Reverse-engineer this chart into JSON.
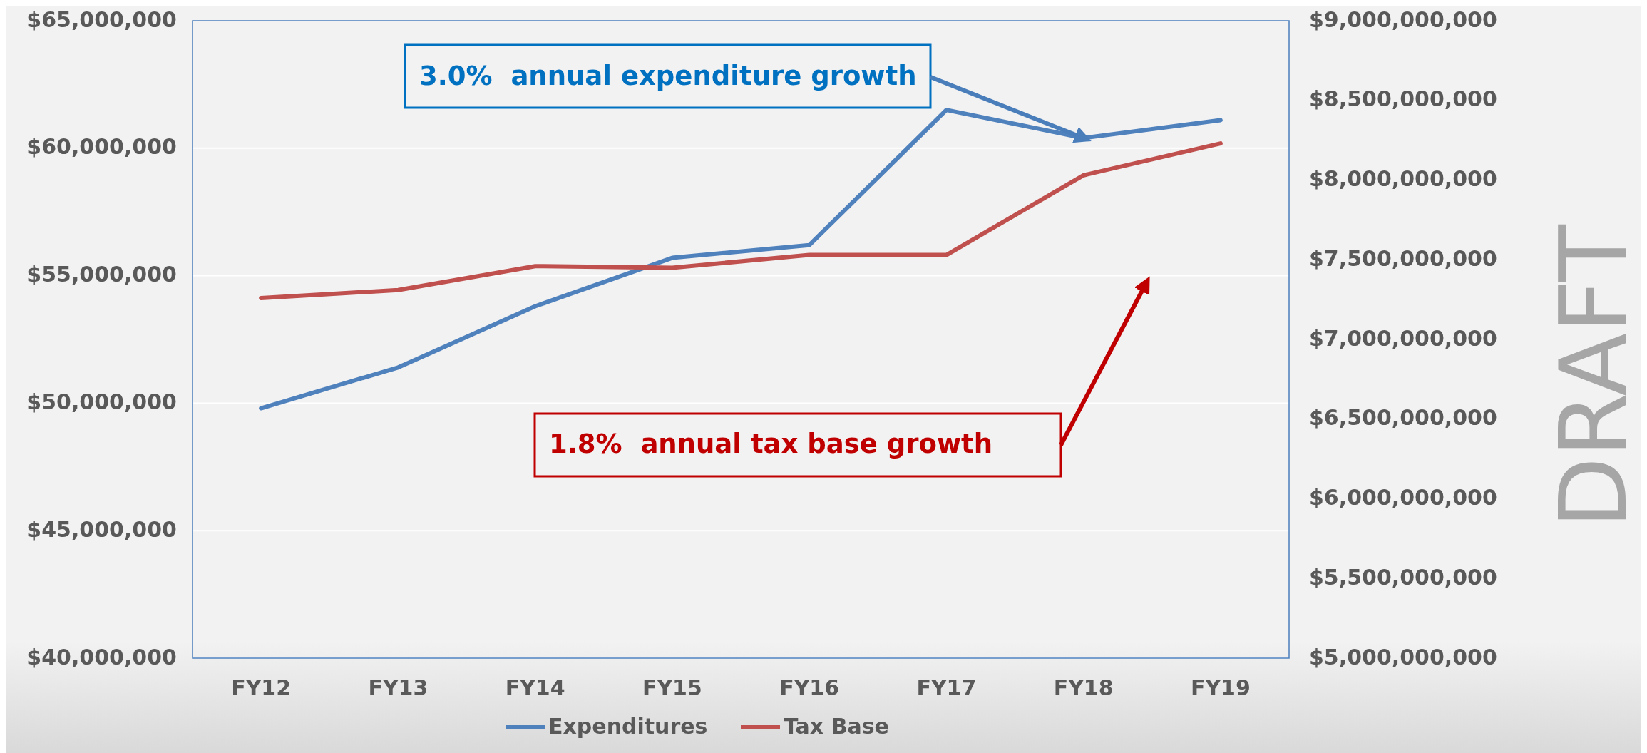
{
  "chart_data": {
    "type": "line",
    "categories": [
      "FY12",
      "FY13",
      "FY14",
      "FY15",
      "FY16",
      "FY17",
      "FY18",
      "FY19"
    ],
    "series": [
      {
        "name": "Expenditures",
        "color": "#4f81bd",
        "values": [
          49800000,
          51400000,
          53800000,
          55700000,
          56200000,
          61500000,
          60400000,
          61100000
        ]
      },
      {
        "name": "Tax Base",
        "color": "#c0504d",
        "axis": "y2",
        "values": [
          7260000000,
          7310000000,
          7460000000,
          7450000000,
          7530000000,
          7530000000,
          8030000000,
          8230000000
        ]
      }
    ],
    "ylim": [
      40000000,
      65000000
    ],
    "yticks": [
      {
        "value": 40000000,
        "label": "$40,000,000"
      },
      {
        "value": 45000000,
        "label": "$45,000,000"
      },
      {
        "value": 50000000,
        "label": "$50,000,000"
      },
      {
        "value": 55000000,
        "label": "$55,000,000"
      },
      {
        "value": 60000000,
        "label": "$60,000,000"
      },
      {
        "value": 65000000,
        "label": "$65,000,000"
      }
    ],
    "y2lim": [
      5000000000,
      9000000000
    ],
    "y2ticks": [
      {
        "value": 5000000000,
        "label": "$5,000,000,000"
      },
      {
        "value": 5500000000,
        "label": "$5,500,000,000"
      },
      {
        "value": 6000000000,
        "label": "$6,000,000,000"
      },
      {
        "value": 6500000000,
        "label": "$6,500,000,000"
      },
      {
        "value": 7000000000,
        "label": "$7,000,000,000"
      },
      {
        "value": 7500000000,
        "label": "$7,500,000,000"
      },
      {
        "value": 8000000000,
        "label": "$8,000,000,000"
      },
      {
        "value": 8500000000,
        "label": "$8,500,000,000"
      },
      {
        "value": 9000000000,
        "label": "$9,000,000,000"
      }
    ],
    "grid": "y",
    "legend": "bottom",
    "line_style": "solid",
    "marker": "none",
    "annotations": [
      {
        "text": "3.0%  annual expenditure growth",
        "x": "FY18",
        "y": 60400000
      },
      "1.8%  annual tax base growth",
      "DRAFT"
    ]
  }
}
